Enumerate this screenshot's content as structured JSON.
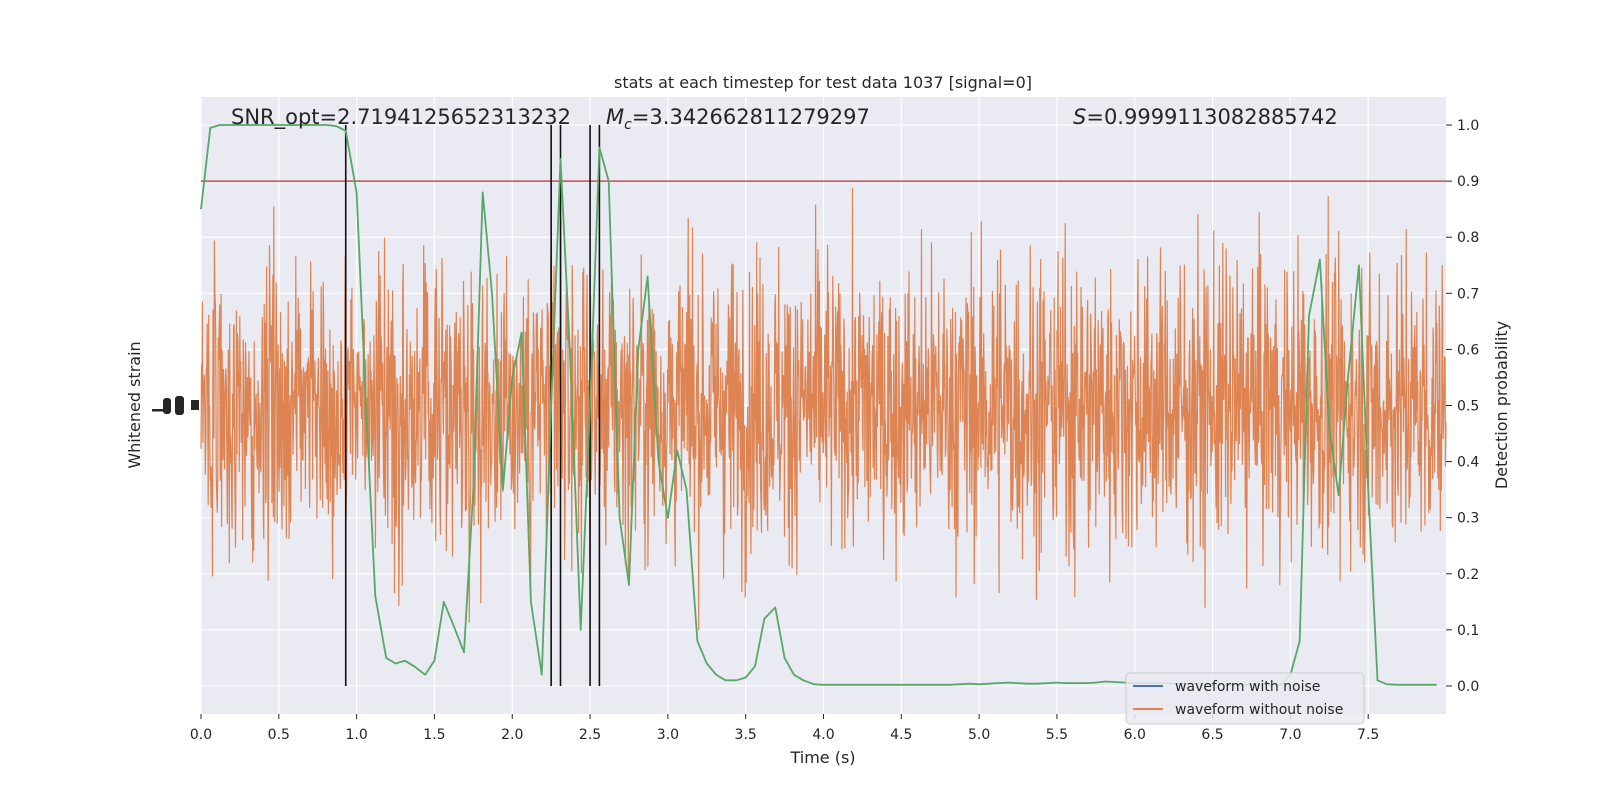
{
  "chart_data": {
    "type": "line",
    "title": "stats at each timestep for test data 1037 [signal=0]",
    "xlabel": "Time (s)",
    "ylabel_left": "Whitened strain",
    "ylabel_right": "Detection probability",
    "xlim": [
      0.0,
      8.0
    ],
    "ylim_right": [
      -0.05,
      1.05
    ],
    "x_ticks": [
      "0.0",
      "0.5",
      "1.0",
      "1.5",
      "2.0",
      "2.5",
      "3.0",
      "3.5",
      "4.0",
      "4.5",
      "5.0",
      "5.5",
      "6.0",
      "6.5",
      "7.0",
      "7.5"
    ],
    "x_tick_values": [
      0.0,
      0.5,
      1.0,
      1.5,
      2.0,
      2.5,
      3.0,
      3.5,
      4.0,
      4.5,
      5.0,
      5.5,
      6.0,
      6.5,
      7.0,
      7.5
    ],
    "y_right_ticks": [
      "0.0",
      "0.1",
      "0.2",
      "0.3",
      "0.4",
      "0.5",
      "0.6",
      "0.7",
      "0.8",
      "0.9",
      "1.0"
    ],
    "y_right_tick_values": [
      0.0,
      0.1,
      0.2,
      0.3,
      0.4,
      0.5,
      0.6,
      0.7,
      0.8,
      0.9,
      1.0
    ],
    "grid": true,
    "legend_placement": "lower-right",
    "annotations": {
      "snr": "SNR_opt=2.7194125652313232",
      "mc_symbol": "M",
      "mc_sub": "c",
      "mc_value": "=3.342662811279297",
      "s_symbol": "S",
      "s_value": "=0.9999113082885742"
    },
    "threshold": 0.9,
    "vlines": [
      0.93,
      2.25,
      2.31,
      2.5,
      2.56
    ],
    "series": [
      {
        "name": "waveform with noise",
        "color": "#4c72b0"
      },
      {
        "name": "waveform without noise",
        "color": "#dd8452"
      },
      {
        "color": "#55a868",
        "x": [
          0.0,
          0.06,
          0.12,
          0.19,
          0.25,
          0.31,
          0.37,
          0.44,
          0.5,
          0.56,
          0.62,
          0.69,
          0.75,
          0.81,
          0.87,
          0.93,
          1.0,
          1.06,
          1.12,
          1.19,
          1.25,
          1.31,
          1.37,
          1.44,
          1.5,
          1.56,
          1.62,
          1.69,
          1.75,
          1.81,
          1.87,
          1.94,
          2.0,
          2.06,
          2.12,
          2.19,
          2.25,
          2.31,
          2.37,
          2.44,
          2.5,
          2.56,
          2.62,
          2.69,
          2.75,
          2.81,
          2.87,
          2.94,
          3.0,
          3.06,
          3.12,
          3.19,
          3.25,
          3.31,
          3.37,
          3.44,
          3.5,
          3.56,
          3.62,
          3.69,
          3.75,
          3.81,
          3.87,
          3.94,
          4.0,
          4.06,
          4.12,
          4.19,
          4.25,
          4.31,
          4.37,
          4.44,
          4.5,
          4.56,
          4.62,
          4.69,
          4.75,
          4.81,
          4.87,
          4.94,
          5.0,
          5.06,
          5.12,
          5.19,
          5.25,
          5.31,
          5.37,
          5.44,
          5.5,
          5.56,
          5.62,
          5.69,
          5.75,
          5.81,
          5.87,
          5.94,
          6.0,
          6.06,
          6.12,
          6.19,
          6.25,
          6.31,
          6.37,
          6.44,
          6.5,
          6.56,
          6.62,
          6.69,
          6.75,
          6.81,
          6.87,
          6.94,
          7.0,
          7.06,
          7.12,
          7.19,
          7.25,
          7.31,
          7.37,
          7.44,
          7.5,
          7.56,
          7.62,
          7.69,
          7.75,
          7.81,
          7.87,
          7.94
        ],
        "values": [
          0.85,
          0.995,
          1.0,
          1.0,
          1.0,
          1.0,
          1.0,
          1.0,
          1.0,
          1.0,
          1.0,
          1.0,
          1.0,
          1.0,
          0.998,
          0.99,
          0.88,
          0.5,
          0.16,
          0.05,
          0.04,
          0.045,
          0.035,
          0.02,
          0.045,
          0.15,
          0.11,
          0.06,
          0.35,
          0.88,
          0.7,
          0.35,
          0.55,
          0.63,
          0.15,
          0.02,
          0.5,
          0.94,
          0.6,
          0.1,
          0.5,
          0.96,
          0.9,
          0.3,
          0.18,
          0.6,
          0.73,
          0.4,
          0.3,
          0.42,
          0.35,
          0.08,
          0.04,
          0.02,
          0.01,
          0.01,
          0.015,
          0.035,
          0.12,
          0.14,
          0.05,
          0.02,
          0.01,
          0.003,
          0.002,
          0.002,
          0.002,
          0.002,
          0.002,
          0.002,
          0.002,
          0.002,
          0.002,
          0.002,
          0.002,
          0.002,
          0.002,
          0.002,
          0.003,
          0.004,
          0.003,
          0.004,
          0.005,
          0.006,
          0.005,
          0.004,
          0.004,
          0.005,
          0.006,
          0.005,
          0.005,
          0.005,
          0.006,
          0.008,
          0.007,
          0.006,
          0.005,
          0.005,
          0.006,
          0.005,
          0.004,
          0.004,
          0.004,
          0.004,
          0.003,
          0.003,
          0.002,
          0.002,
          0.002,
          0.002,
          0.002,
          0.002,
          0.02,
          0.08,
          0.66,
          0.76,
          0.46,
          0.34,
          0.55,
          0.75,
          0.35,
          0.01,
          0.003,
          0.002,
          0.002,
          0.002,
          0.002,
          0.002
        ]
      }
    ]
  }
}
